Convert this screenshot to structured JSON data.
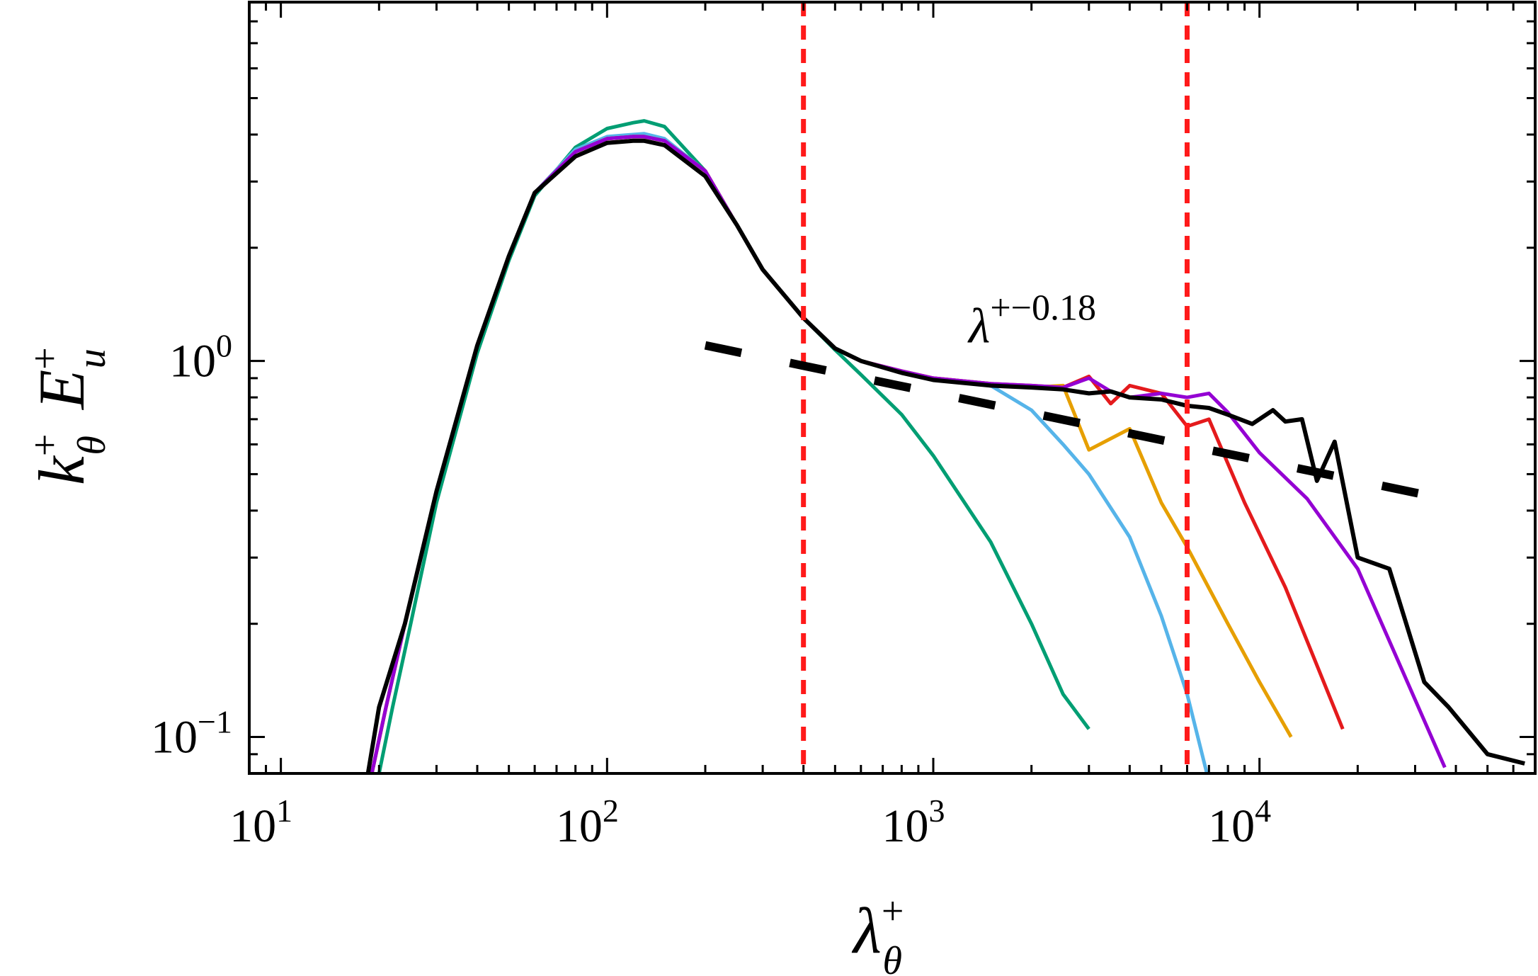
{
  "chart_data": {
    "type": "line",
    "xlabel": "λ+θ",
    "ylabel": "k+θ E+u",
    "x_scale": "log",
    "y_scale": "log",
    "xlim": [
      8,
      70000
    ],
    "ylim": [
      0.08,
      9
    ],
    "x_ticks": [
      {
        "value": 10,
        "base": "10",
        "exp": "1"
      },
      {
        "value": 100,
        "base": "10",
        "exp": "2"
      },
      {
        "value": 1000,
        "base": "10",
        "exp": "3"
      },
      {
        "value": 10000,
        "base": "10",
        "exp": "4"
      }
    ],
    "y_ticks": [
      {
        "value": 0.1,
        "base": "10",
        "exp": "−1"
      },
      {
        "value": 1,
        "base": "10",
        "exp": "0"
      }
    ],
    "grid": false,
    "legend": "none",
    "reference_lines": {
      "vertical_dashed": [
        {
          "x": 400,
          "color": "#ff1a1a"
        },
        {
          "x": 6000,
          "color": "#ff1a1a"
        }
      ],
      "power_law": {
        "label_base": "λ",
        "label_exp": "+−0.18",
        "exponent": -0.18,
        "x_range": [
          200,
          34000
        ],
        "y_at_200": 1.1,
        "color": "#000000"
      }
    },
    "series": [
      {
        "color": "#009e73",
        "x": [
          20,
          22,
          25,
          30,
          40,
          50,
          60,
          80,
          100,
          120,
          130,
          150,
          200,
          250,
          300,
          400,
          500,
          600,
          800,
          1000,
          1500,
          2000,
          2500,
          3000
        ],
        "y": [
          0.08,
          0.12,
          0.2,
          0.42,
          1.05,
          1.85,
          2.75,
          3.7,
          4.15,
          4.3,
          4.35,
          4.2,
          3.2,
          2.3,
          1.75,
          1.3,
          1.07,
          0.92,
          0.72,
          0.56,
          0.33,
          0.2,
          0.13,
          0.105
        ]
      },
      {
        "color": "#56b4e9",
        "x": [
          19,
          21,
          24,
          30,
          40,
          50,
          60,
          80,
          100,
          120,
          130,
          150,
          200,
          250,
          300,
          400,
          500,
          600,
          800,
          1000,
          1300,
          1500,
          2000,
          2500,
          3000,
          4000,
          5000,
          6000,
          6900
        ],
        "y": [
          0.08,
          0.12,
          0.2,
          0.45,
          1.1,
          1.9,
          2.8,
          3.65,
          3.95,
          4.0,
          4.02,
          3.9,
          3.2,
          2.3,
          1.75,
          1.3,
          1.08,
          1.0,
          0.93,
          0.89,
          0.87,
          0.86,
          0.74,
          0.6,
          0.5,
          0.34,
          0.21,
          0.13,
          0.08
        ]
      },
      {
        "color": "#e69f00",
        "x": [
          19,
          21,
          24,
          30,
          40,
          50,
          60,
          80,
          100,
          120,
          130,
          150,
          200,
          250,
          300,
          400,
          500,
          600,
          800,
          1000,
          1500,
          2000,
          2500,
          3000,
          4000,
          5000,
          6000,
          8000,
          10000,
          12500
        ],
        "y": [
          0.08,
          0.12,
          0.2,
          0.45,
          1.1,
          1.9,
          2.8,
          3.6,
          3.9,
          3.95,
          3.95,
          3.85,
          3.2,
          2.3,
          1.75,
          1.3,
          1.08,
          1.0,
          0.94,
          0.9,
          0.87,
          0.85,
          0.86,
          0.58,
          0.66,
          0.42,
          0.32,
          0.2,
          0.14,
          0.1
        ]
      },
      {
        "color": "#e41a1c",
        "x": [
          19,
          21,
          24,
          30,
          40,
          50,
          60,
          80,
          100,
          120,
          130,
          150,
          200,
          250,
          300,
          400,
          500,
          600,
          800,
          1000,
          1500,
          2000,
          2500,
          3000,
          3500,
          4000,
          5000,
          6000,
          7000,
          9000,
          12000,
          18000
        ],
        "y": [
          0.08,
          0.12,
          0.2,
          0.45,
          1.1,
          1.9,
          2.8,
          3.6,
          3.9,
          3.95,
          3.95,
          3.85,
          3.2,
          2.3,
          1.75,
          1.3,
          1.08,
          1.0,
          0.94,
          0.9,
          0.87,
          0.86,
          0.85,
          0.91,
          0.77,
          0.86,
          0.82,
          0.67,
          0.7,
          0.42,
          0.25,
          0.105
        ]
      },
      {
        "color": "#9400d3",
        "x": [
          19,
          21,
          24,
          30,
          40,
          50,
          60,
          80,
          100,
          120,
          130,
          150,
          200,
          250,
          300,
          400,
          500,
          600,
          800,
          1000,
          1500,
          2000,
          2500,
          3000,
          3500,
          4000,
          5000,
          6000,
          7000,
          8000,
          10000,
          14000,
          20000,
          37000
        ],
        "y": [
          0.08,
          0.12,
          0.2,
          0.45,
          1.1,
          1.9,
          2.8,
          3.6,
          3.9,
          3.95,
          3.95,
          3.85,
          3.2,
          2.3,
          1.75,
          1.3,
          1.08,
          1.0,
          0.94,
          0.9,
          0.87,
          0.86,
          0.85,
          0.9,
          0.83,
          0.8,
          0.82,
          0.8,
          0.82,
          0.73,
          0.57,
          0.43,
          0.28,
          0.083
        ]
      },
      {
        "color": "#000000",
        "x": [
          18.5,
          20,
          24,
          30,
          40,
          50,
          60,
          80,
          100,
          120,
          130,
          150,
          200,
          250,
          300,
          400,
          500,
          600,
          800,
          1000,
          1500,
          2000,
          2500,
          3000,
          3500,
          4000,
          5000,
          6000,
          7000,
          8000,
          9500,
          11000,
          12000,
          13500,
          15000,
          17000,
          20000,
          25000,
          32000,
          38000,
          50000,
          65000
        ],
        "y": [
          0.08,
          0.12,
          0.2,
          0.45,
          1.1,
          1.9,
          2.8,
          3.5,
          3.8,
          3.85,
          3.85,
          3.75,
          3.1,
          2.3,
          1.75,
          1.3,
          1.08,
          1.0,
          0.93,
          0.89,
          0.86,
          0.85,
          0.84,
          0.82,
          0.83,
          0.8,
          0.79,
          0.76,
          0.75,
          0.72,
          0.68,
          0.74,
          0.69,
          0.7,
          0.48,
          0.61,
          0.3,
          0.28,
          0.14,
          0.12,
          0.09,
          0.085
        ]
      }
    ]
  }
}
